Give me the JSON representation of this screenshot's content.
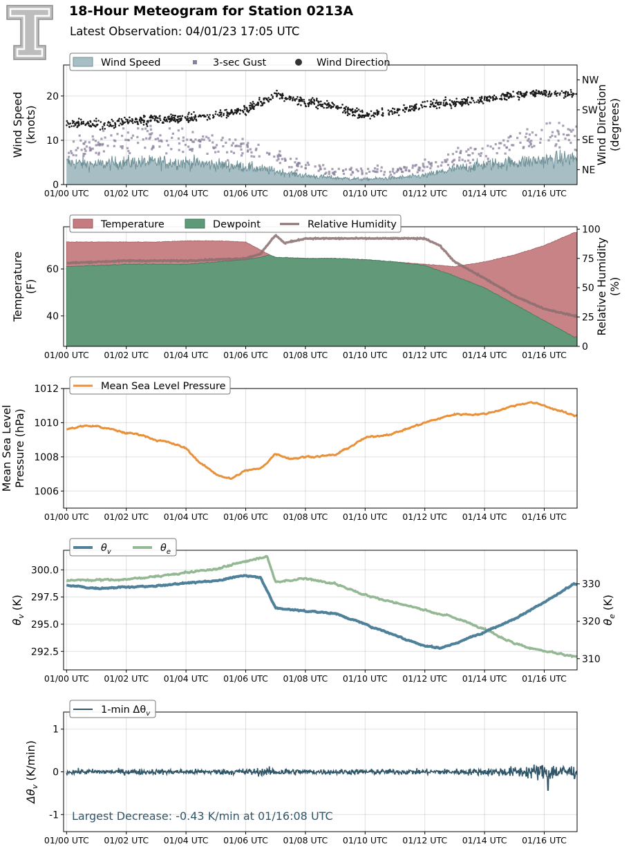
{
  "header": {
    "title": "18-Hour Meteogram for Station 0213A",
    "subtitle": "Latest Observation: 04/01/23 17:05 UTC"
  },
  "x_ticks": [
    "01/00 UTC",
    "01/02 UTC",
    "01/04 UTC",
    "01/06 UTC",
    "01/08 UTC",
    "01/10 UTC",
    "01/12 UTC",
    "01/14 UTC",
    "01/16 UTC"
  ],
  "colors": {
    "wind_fill": "#a7bfc4",
    "wind_line": "#6f9097",
    "gust": "#8a7f9c",
    "direction": "#1a1a1a",
    "temperature": "#c47c80",
    "dewpoint": "#5c9a78",
    "rh": "#8a6d6d",
    "pressure": "#e8913a",
    "theta_v": "#4f8099",
    "theta_e": "#94b894",
    "dtheta": "#2f5569",
    "annotation": "#2f5569"
  },
  "chart_data": [
    {
      "type": "area",
      "panel": "wind",
      "ylabel_lines": [
        "Wind Speed",
        "(knots)"
      ],
      "y2label_lines": [
        "Wind Direction",
        "(degrees)"
      ],
      "xlim": [
        -0.1,
        17.1
      ],
      "ylim": [
        0,
        27
      ],
      "y_ticks": [
        0,
        10,
        20
      ],
      "y2lim": [
        0,
        360
      ],
      "y2_ticks": [
        {
          "value": 45,
          "label": "NE"
        },
        {
          "value": 135,
          "label": "SE"
        },
        {
          "value": 225,
          "label": "SW"
        },
        {
          "value": 315,
          "label": "NW"
        }
      ],
      "legend": [
        "Wind Speed",
        "3-sec Gust",
        "Wind Direction"
      ],
      "series": [
        {
          "name": "Wind Speed",
          "type": "area",
          "x": [
            0,
            1,
            2,
            3,
            4,
            5,
            6,
            7,
            8,
            9,
            10,
            11,
            12,
            13,
            14,
            15,
            16,
            17
          ],
          "values": [
            5,
            4.5,
            5,
            5,
            5,
            4.5,
            4,
            3,
            2,
            1.5,
            1.2,
            1.5,
            2,
            3.5,
            4.5,
            5,
            5.5,
            6
          ]
        },
        {
          "name": "3-sec Gust",
          "type": "scatter",
          "x": [
            0,
            1,
            2,
            3,
            4,
            5,
            6,
            7,
            8,
            9,
            10,
            11,
            12,
            13,
            14,
            15,
            16,
            17
          ],
          "values": [
            8,
            9,
            10,
            11,
            10,
            9,
            8,
            6,
            4,
            3,
            3,
            3,
            4,
            6,
            8,
            10,
            11,
            12
          ]
        },
        {
          "name": "Wind Direction",
          "type": "scatter",
          "x": [
            0,
            1,
            2,
            3,
            4,
            5,
            6,
            7,
            8,
            9,
            10,
            11,
            12,
            13,
            14,
            15,
            16,
            17
          ],
          "values": [
            185,
            180,
            190,
            195,
            200,
            210,
            225,
            270,
            250,
            235,
            210,
            220,
            240,
            245,
            255,
            270,
            275,
            270
          ]
        }
      ]
    },
    {
      "type": "area",
      "panel": "thermo",
      "ylabel_lines": [
        "Temperature",
        "(F)"
      ],
      "y2label_lines": [
        "Relative Humidity",
        "(%)"
      ],
      "xlim": [
        -0.1,
        17.1
      ],
      "ylim": [
        27,
        78
      ],
      "y_ticks": [
        40,
        60
      ],
      "y2lim": [
        0,
        102
      ],
      "y2_ticks": [
        0,
        25,
        50,
        75,
        100
      ],
      "legend": [
        "Temperature",
        "Dewpoint",
        "Relative Humidity"
      ],
      "series": [
        {
          "name": "Temperature",
          "type": "area",
          "x": [
            0,
            1,
            2,
            3,
            4,
            5,
            6,
            6.8,
            7,
            8,
            9,
            10,
            11,
            12,
            13,
            14,
            15,
            16,
            17
          ],
          "values": [
            71.5,
            71.5,
            71.5,
            71.5,
            72,
            72,
            71.5,
            66,
            65,
            64.5,
            64.5,
            64,
            63,
            62,
            61,
            63,
            66,
            70,
            75.5
          ]
        },
        {
          "name": "Dewpoint",
          "type": "area",
          "x": [
            0,
            1,
            2,
            3,
            4,
            5,
            6,
            6.5,
            6.8,
            7,
            8,
            9,
            10,
            11,
            12,
            13,
            14,
            15,
            16,
            17
          ],
          "values": [
            61,
            61.5,
            62,
            62,
            62,
            63,
            64,
            65,
            66,
            65,
            64.5,
            64.5,
            64,
            63,
            61.5,
            57,
            52,
            45,
            38,
            31
          ]
        },
        {
          "name": "Relative Humidity",
          "type": "line",
          "x": [
            0,
            1,
            2,
            3,
            4,
            5,
            6,
            6.5,
            7,
            7.3,
            8,
            9,
            10,
            11,
            12,
            12.5,
            13,
            14,
            15,
            16,
            17
          ],
          "values": [
            71,
            72,
            73,
            73,
            73,
            74,
            75,
            79,
            95,
            88,
            92,
            92,
            92,
            92,
            92,
            86,
            72,
            58,
            43,
            32,
            26
          ]
        }
      ]
    },
    {
      "type": "line",
      "panel": "pressure",
      "ylabel_lines": [
        "Mean Sea Level",
        "Pressure (hPa)"
      ],
      "xlim": [
        -0.1,
        17.1
      ],
      "ylim": [
        1005,
        1012
      ],
      "y_ticks": [
        1006,
        1008,
        1010,
        1012
      ],
      "legend": [
        "Mean Sea Level Pressure"
      ],
      "series": [
        {
          "name": "Mean Sea Level Pressure",
          "x": [
            0,
            0.5,
            1,
            1.5,
            2,
            2.5,
            3,
            3.5,
            4,
            4.5,
            5,
            5.5,
            6,
            6.5,
            7,
            7.5,
            8,
            9,
            10,
            11,
            12,
            13,
            14,
            15,
            15.5,
            16,
            17
          ],
          "values": [
            1009.6,
            1009.8,
            1009.8,
            1009.6,
            1009.4,
            1009.3,
            1009.0,
            1008.8,
            1008.5,
            1007.6,
            1007.0,
            1006.7,
            1007.2,
            1007.3,
            1008.2,
            1007.9,
            1008.0,
            1008.1,
            1009.1,
            1009.4,
            1010.0,
            1010.5,
            1010.5,
            1011.0,
            1011.2,
            1011.0,
            1010.4
          ]
        }
      ]
    },
    {
      "type": "line",
      "panel": "theta",
      "ylabel_latex": "θv (K)",
      "y2label_latex": "θe (K)",
      "xlim": [
        -0.1,
        17.1
      ],
      "ylim": [
        290.8,
        301.8
      ],
      "y_ticks": [
        292.5,
        295.0,
        297.5,
        300.0
      ],
      "y_tick_labels": [
        "292.5",
        "295.0",
        "297.5",
        "300.0"
      ],
      "y2lim": [
        307,
        339
      ],
      "y2_ticks": [
        310,
        320,
        330
      ],
      "legend": [
        "θv",
        "θe"
      ],
      "series": [
        {
          "name": "θv",
          "axis": "left",
          "x": [
            0,
            1,
            2,
            3,
            4,
            5,
            6,
            6.5,
            7,
            8,
            9,
            10,
            11,
            12,
            12.5,
            13,
            14,
            15,
            16,
            17
          ],
          "values": [
            298.6,
            298.3,
            298.4,
            298.5,
            298.8,
            299.0,
            299.5,
            299.3,
            296.5,
            296.2,
            296.0,
            295.0,
            294.0,
            293.0,
            292.8,
            293.2,
            294.3,
            295.5,
            297.0,
            298.7
          ]
        },
        {
          "name": "θe",
          "axis": "right",
          "x": [
            0,
            1,
            2,
            3,
            4,
            5,
            6,
            6.7,
            7,
            8,
            9,
            10,
            11,
            12,
            13,
            14,
            15,
            16,
            17
          ],
          "values": [
            331,
            331,
            331.2,
            332,
            333,
            334,
            336,
            337.5,
            330.5,
            331.5,
            330,
            327,
            325,
            323,
            321,
            318,
            314,
            312,
            310.5
          ]
        }
      ]
    },
    {
      "type": "line",
      "panel": "dtheta",
      "ylabel_latex": "Δθv (K/min)",
      "xlim": [
        -0.1,
        17.1
      ],
      "ylim": [
        -1.4,
        1.4
      ],
      "y_ticks": [
        -1,
        0,
        1
      ],
      "legend": [
        "1-min Δθv"
      ],
      "annotation": "Largest Decrease: -0.43 K/min at 01/16:08 UTC",
      "series": [
        {
          "name": "1-min Δθv",
          "x": [
            0,
            1,
            2,
            3,
            4,
            5,
            6,
            7,
            8,
            9,
            10,
            11,
            12,
            13,
            14,
            15,
            16,
            17
          ],
          "amplitude": [
            0.08,
            0.08,
            0.08,
            0.08,
            0.08,
            0.08,
            0.1,
            0.12,
            0.08,
            0.08,
            0.08,
            0.08,
            0.08,
            0.09,
            0.1,
            0.15,
            0.25,
            0.2
          ]
        }
      ]
    }
  ]
}
